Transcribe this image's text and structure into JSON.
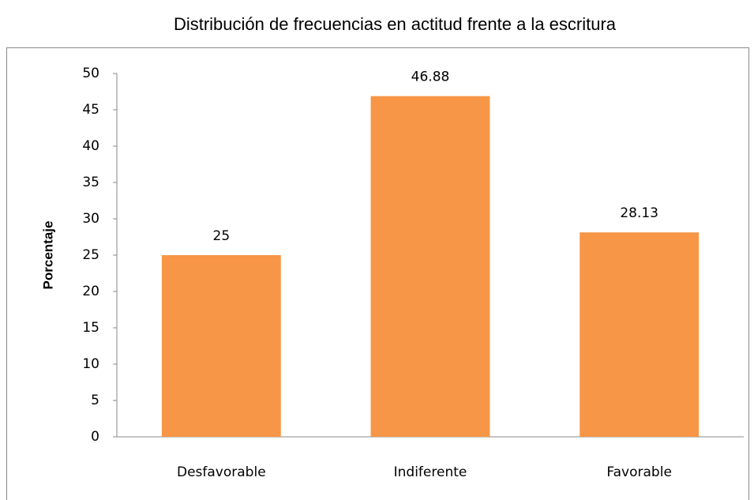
{
  "chart_data": {
    "type": "bar",
    "title": "Distribución de frecuencias en actitud frente a la escritura",
    "y_label": "Porcentaje",
    "categories": [
      "Desfavorable",
      "Indiferente",
      "Favorable"
    ],
    "values": [
      25,
      46.88,
      28.13
    ],
    "color": "#f79646",
    "ylim": [
      0,
      50
    ],
    "yticks": [
      0,
      5,
      10,
      15,
      20,
      25,
      30,
      35,
      40,
      45,
      50
    ],
    "grid": false
  }
}
